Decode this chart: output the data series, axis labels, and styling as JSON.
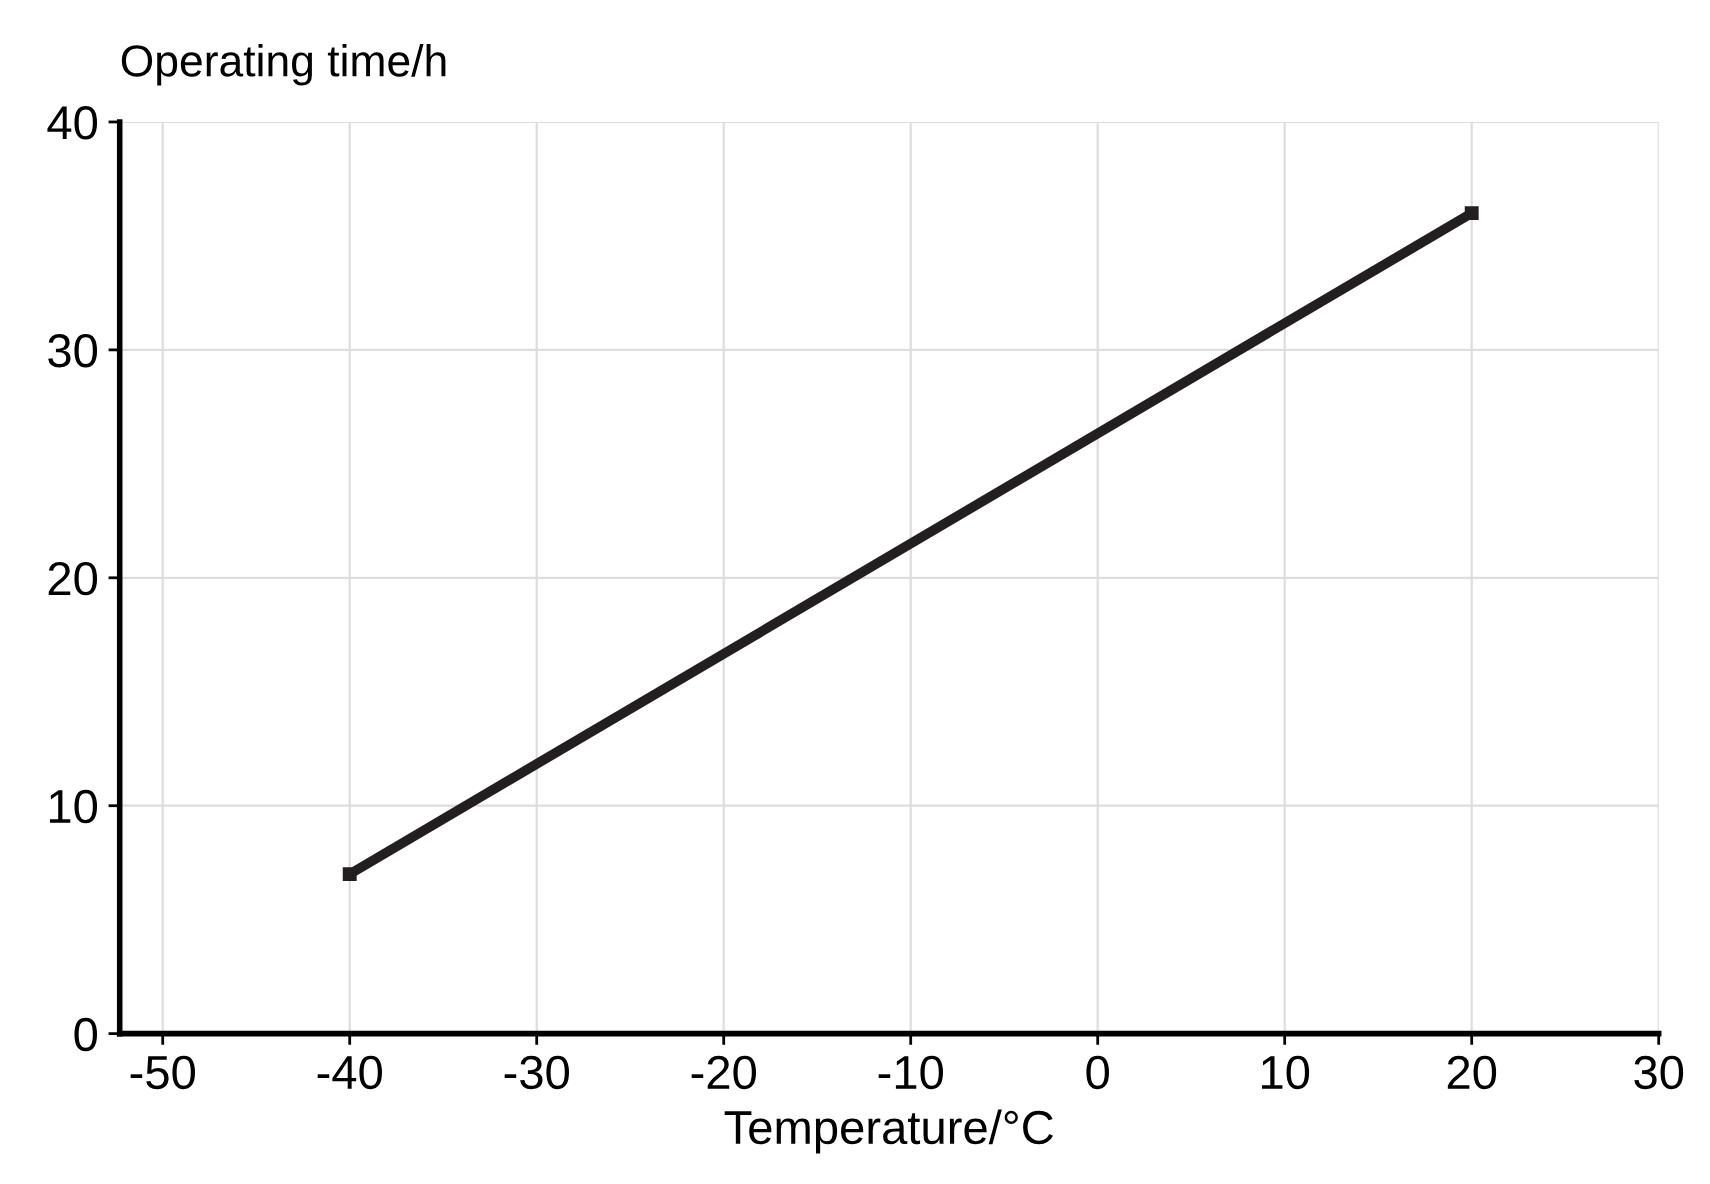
{
  "chart_data": {
    "type": "line",
    "xlabel": "Temperature/°C",
    "ylabel": "Operating time/h",
    "x": [
      -40,
      20
    ],
    "series": [
      {
        "color": "#231f20",
        "values": [
          7,
          36
        ]
      }
    ],
    "xlim": [
      -52.3,
      30
    ],
    "xticks": [
      -50,
      -40,
      -30,
      -20,
      -10,
      0,
      10,
      20,
      30
    ],
    "ylim": [
      0,
      40
    ],
    "yticks": [
      0,
      10,
      20,
      30,
      40
    ],
    "grid": true,
    "marker": "square",
    "line_style": "solid"
  }
}
